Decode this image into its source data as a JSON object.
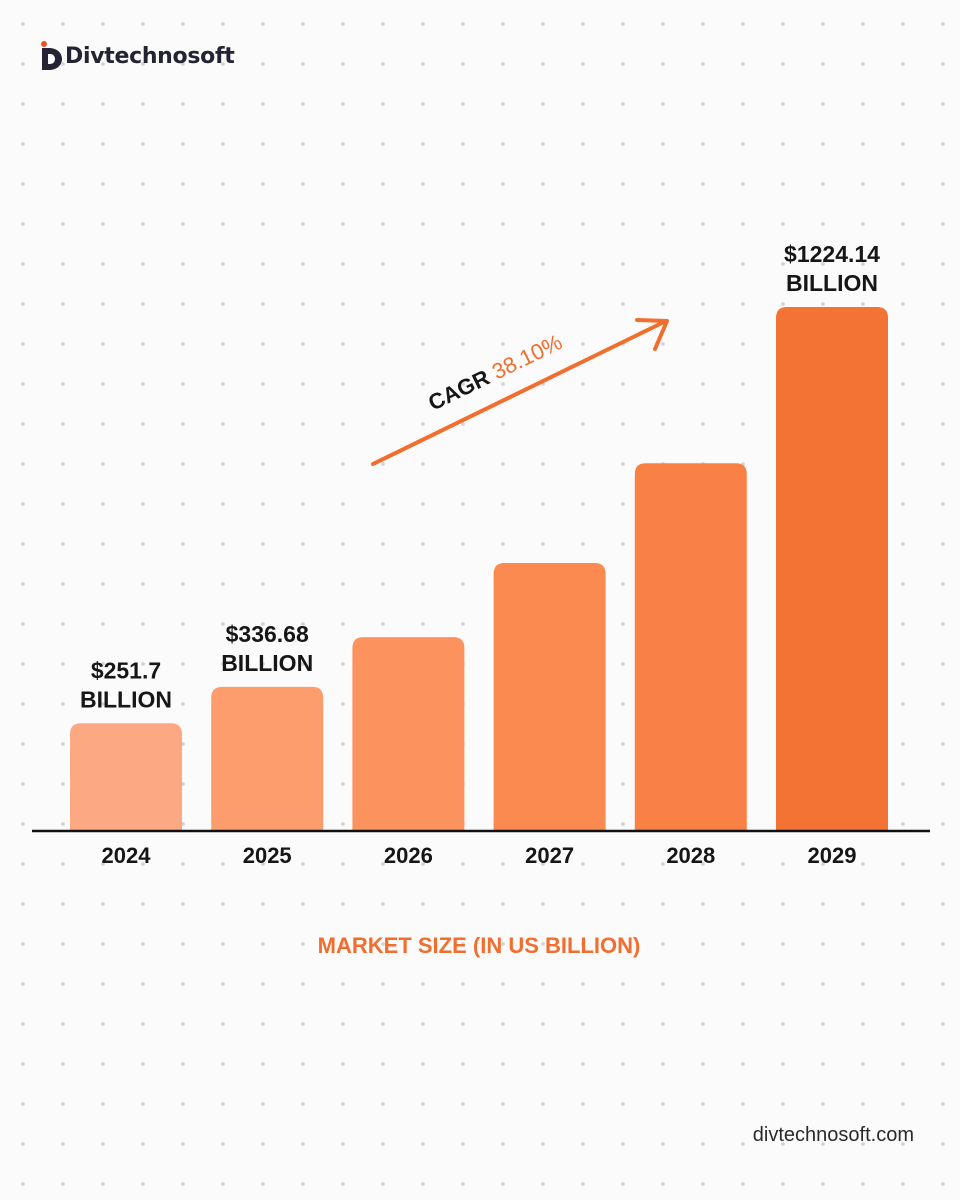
{
  "brand": {
    "name": "Divtechnosoft",
    "url": "divtechnosoft.com",
    "accent_color": "#f26e2f"
  },
  "chart_data": {
    "type": "bar",
    "title": "",
    "xlabel": "MARKET SIZE (IN US BILLION)",
    "ylabel": "",
    "categories": [
      "2024",
      "2025",
      "2026",
      "2027",
      "2028",
      "2029"
    ],
    "values": [
      251.7,
      336.68,
      453.0,
      626.0,
      859.0,
      1224.14
    ],
    "data_labels": [
      "$251.7\nBILLION",
      "$336.68\nBILLION",
      "",
      "",
      "",
      "$1224.14\nBILLION"
    ],
    "ylim": [
      0,
      1300
    ],
    "grid": false,
    "legend": "none",
    "bar_colors": [
      "#fca882",
      "#fd9d6d",
      "#fc935f",
      "#fb8a50",
      "#f98145",
      "#f27333"
    ],
    "annotation": {
      "label": "CAGR",
      "value": "38.10%"
    }
  }
}
